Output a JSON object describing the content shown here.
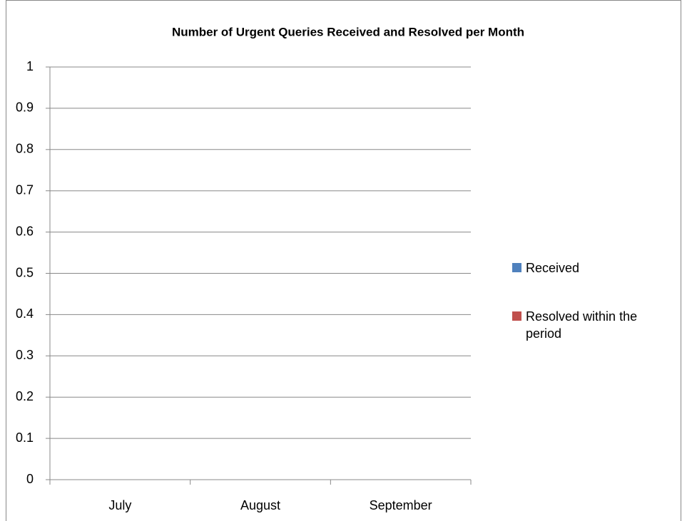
{
  "chart_data": {
    "type": "bar",
    "title": "Number of Urgent Queries Received and Resolved per Month",
    "categories": [
      "July",
      "August",
      "September"
    ],
    "series": [
      {
        "name": "Received",
        "color": "#4f81bd",
        "values": [
          null,
          null,
          null
        ]
      },
      {
        "name": "Resolved within the period",
        "color": "#c0504d",
        "values": [
          null,
          null,
          null
        ]
      }
    ],
    "ylim": [
      0,
      1
    ],
    "yticks": [
      0,
      0.1,
      0.2,
      0.3,
      0.4,
      0.5,
      0.6,
      0.7,
      0.8,
      0.9,
      1
    ],
    "grid": true,
    "legend": "right"
  }
}
